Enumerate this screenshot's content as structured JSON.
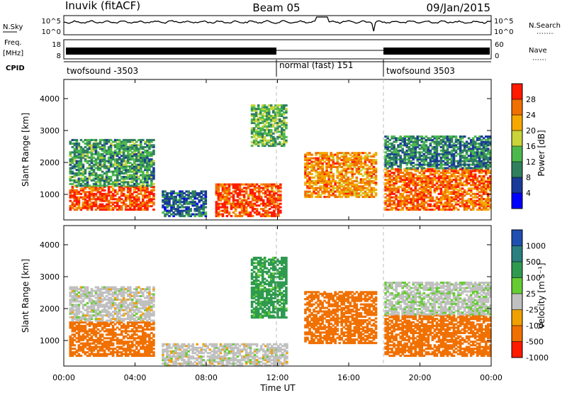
{
  "header": {
    "station": "Inuvik (fitACF)",
    "beam": "Beam 05",
    "date": "09/Jan/2015"
  },
  "x_axis": {
    "label": "Time UT",
    "ticks": [
      "00:00",
      "04:00",
      "08:00",
      "12:00",
      "16:00",
      "20:00",
      "00:00"
    ],
    "range_hours": [
      0,
      24
    ]
  },
  "status_panel": {
    "nsky_label": "N.Sky",
    "nsky_ticks": [
      "10^5",
      "10^0"
    ],
    "nsearch_label": "N.Search",
    "freq_label_1": "Freq.",
    "freq_label_2": "[MHz]",
    "freq_ticks": [
      "18",
      "8"
    ],
    "nave_label": "Nave",
    "nave_ticks": [
      "60",
      "0"
    ],
    "cpid_label": "CPID",
    "cpid_segments": [
      {
        "label": "twofsound -3503",
        "start_h": 0,
        "end_h": 12
      },
      {
        "label": "normal (fast) 151",
        "start_h": 12,
        "end_h": 18
      },
      {
        "label": "twofsound 3503",
        "start_h": 18,
        "end_h": 24
      }
    ]
  },
  "chart_data": [
    {
      "type": "heatmap",
      "title": "",
      "xlabel": "",
      "ylabel": "Slant Range [km]",
      "xlim": [
        0,
        24
      ],
      "ylim": [
        200,
        4600
      ],
      "yticks": [
        "1000",
        "2000",
        "3000",
        "4000"
      ],
      "colorbar": {
        "label": "Power [dB]",
        "ticks": [
          "4",
          "8",
          "12",
          "16",
          "20",
          "24",
          "28"
        ],
        "range": [
          0,
          32
        ]
      },
      "regions": [
        {
          "t": [
            0.3,
            5.0
          ],
          "r": [
            500,
            1250
          ],
          "value": 28
        },
        {
          "t": [
            0.3,
            5.0
          ],
          "r": [
            1250,
            2700
          ],
          "value": 12
        },
        {
          "t": [
            5.5,
            8.0
          ],
          "r": [
            300,
            1100
          ],
          "value": 8
        },
        {
          "t": [
            8.5,
            12.2
          ],
          "r": [
            300,
            1300
          ],
          "value": 28
        },
        {
          "t": [
            10.5,
            12.5
          ],
          "r": [
            2500,
            3800
          ],
          "value": 14
        },
        {
          "t": [
            13.5,
            17.5
          ],
          "r": [
            900,
            2300
          ],
          "value": 24
        },
        {
          "t": [
            18.0,
            24.0
          ],
          "r": [
            500,
            1800
          ],
          "value": 26
        },
        {
          "t": [
            18.0,
            24.0
          ],
          "r": [
            1800,
            2800
          ],
          "value": 10
        }
      ]
    },
    {
      "type": "heatmap",
      "title": "",
      "xlabel": "Time UT",
      "ylabel": "Slant Range [km]",
      "xlim": [
        0,
        24
      ],
      "ylim": [
        200,
        4600
      ],
      "yticks": [
        "1000",
        "2000",
        "3000",
        "4000"
      ],
      "colorbar": {
        "label": "Velocity [m s⁻¹]",
        "ticks": [
          "1000",
          "500",
          "100",
          "25",
          "-25",
          "-100",
          "-500",
          "-1000"
        ]
      },
      "regions": [
        {
          "t": [
            0.3,
            5.0
          ],
          "r": [
            500,
            1600
          ],
          "value": -300
        },
        {
          "t": [
            0.3,
            5.0
          ],
          "r": [
            1600,
            2700
          ],
          "value": 0
        },
        {
          "t": [
            5.5,
            12.5
          ],
          "r": [
            200,
            900
          ],
          "value": 0
        },
        {
          "t": [
            10.5,
            12.5
          ],
          "r": [
            1700,
            3600
          ],
          "value": 150
        },
        {
          "t": [
            13.5,
            17.5
          ],
          "r": [
            900,
            2500
          ],
          "value": -300
        },
        {
          "t": [
            18.0,
            24.0
          ],
          "r": [
            500,
            1800
          ],
          "value": -250
        },
        {
          "t": [
            18.0,
            24.0
          ],
          "r": [
            1800,
            2800
          ],
          "value": 10
        }
      ]
    }
  ],
  "colors": {
    "power_scale": [
      "#0000ff",
      "#1a3a9a",
      "#2f7f5f",
      "#4cb84c",
      "#c8d43a",
      "#f5a800",
      "#f07000",
      "#ff1a00"
    ],
    "velocity_scale": [
      "#1f4fb0",
      "#2a7f7f",
      "#2f9a4f",
      "#66cc33",
      "#c0c0c0",
      "#f0a000",
      "#f07000",
      "#ff1a00"
    ]
  }
}
